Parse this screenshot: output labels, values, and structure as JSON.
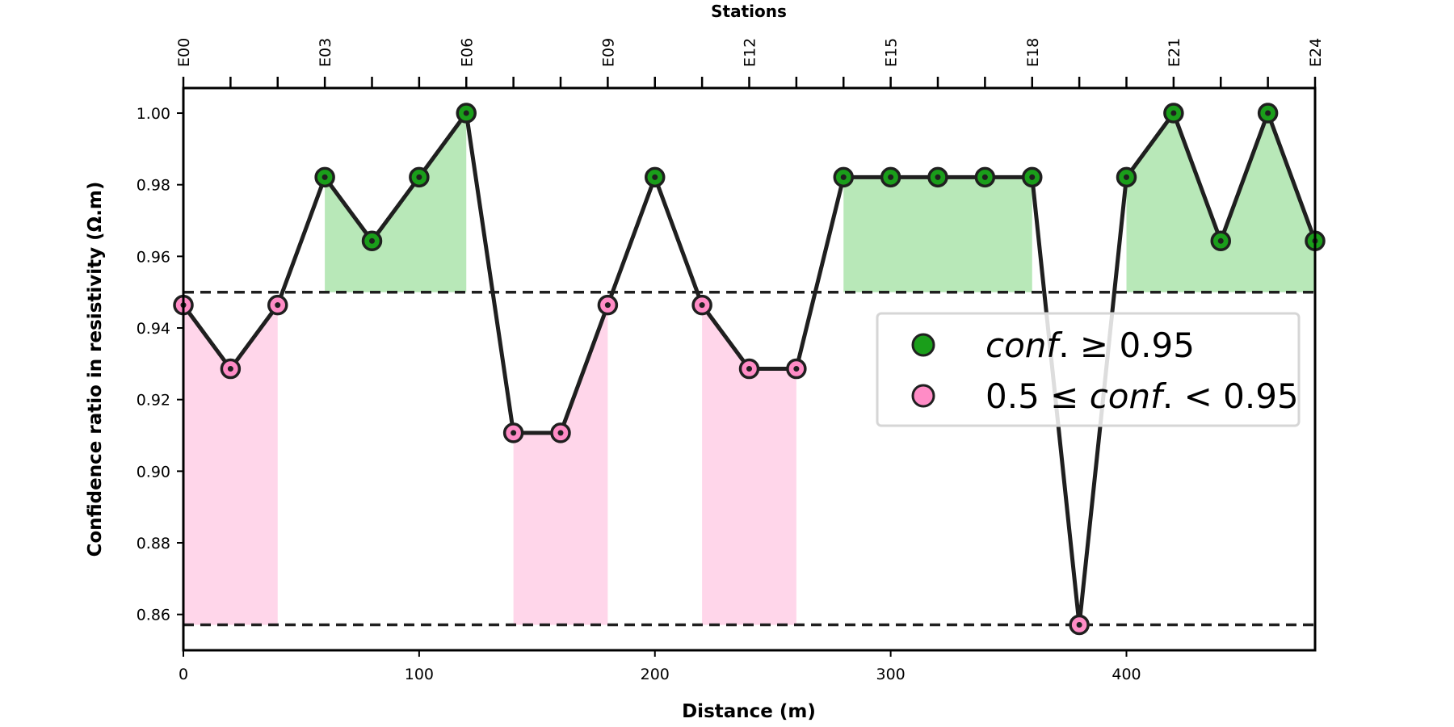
{
  "chart_data": {
    "type": "line",
    "xlabel": "Distance (m)",
    "ylabel": "Confidence ratio in resistivity (Ω.m)",
    "top_xlabel": "Stations",
    "xlim": [
      0,
      480
    ],
    "ylim": [
      0.85,
      1.007
    ],
    "x_ticks": [
      0,
      100,
      200,
      300,
      400
    ],
    "y_ticks": [
      "0.86",
      "0.88",
      "0.90",
      "0.92",
      "0.94",
      "0.96",
      "0.98",
      "1.00"
    ],
    "y_tick_values": [
      0.86,
      0.88,
      0.9,
      0.92,
      0.94,
      0.96,
      0.98,
      1.0
    ],
    "stations": [
      "E00",
      "E03",
      "E06",
      "E09",
      "E12",
      "E15",
      "E18",
      "E21",
      "E24"
    ],
    "station_positions": [
      0,
      60,
      120,
      180,
      240,
      300,
      360,
      420,
      480
    ],
    "minor_top_ticks": [
      20,
      40,
      80,
      100,
      140,
      160,
      200,
      220,
      260,
      280,
      320,
      340,
      380,
      400,
      440,
      460
    ],
    "x": [
      0,
      20,
      40,
      60,
      80,
      100,
      120,
      140,
      160,
      180,
      200,
      220,
      240,
      260,
      280,
      300,
      320,
      340,
      360,
      380,
      400,
      420,
      440,
      460,
      480
    ],
    "y": [
      0.9464,
      0.9286,
      0.9464,
      0.9821,
      0.9643,
      0.9821,
      1.0,
      0.9107,
      0.9107,
      0.9464,
      0.9821,
      0.9464,
      0.9286,
      0.9286,
      0.9821,
      0.9821,
      0.9821,
      0.9821,
      0.9821,
      0.8571,
      0.9821,
      1.0,
      0.9643,
      1.0,
      0.9643
    ],
    "thresholds": [
      0.95,
      0.8571
    ],
    "grid": false,
    "legend_position": "center-right",
    "legend": [
      {
        "prefix": "",
        "italic": "conf",
        "suffix": ". ≥ 0.95",
        "color": "#1a9e1a"
      },
      {
        "prefix": "0.5 ≤ ",
        "italic": "conf",
        "suffix": ". < 0.95",
        "color": "#ff8cc6"
      }
    ],
    "colors": {
      "line": "#1f1f1f",
      "high_fill": "#b8e8b8",
      "low_fill": "#ffd6ea",
      "high_marker": "#1a9e1a",
      "low_marker": "#ff8cc6"
    }
  }
}
